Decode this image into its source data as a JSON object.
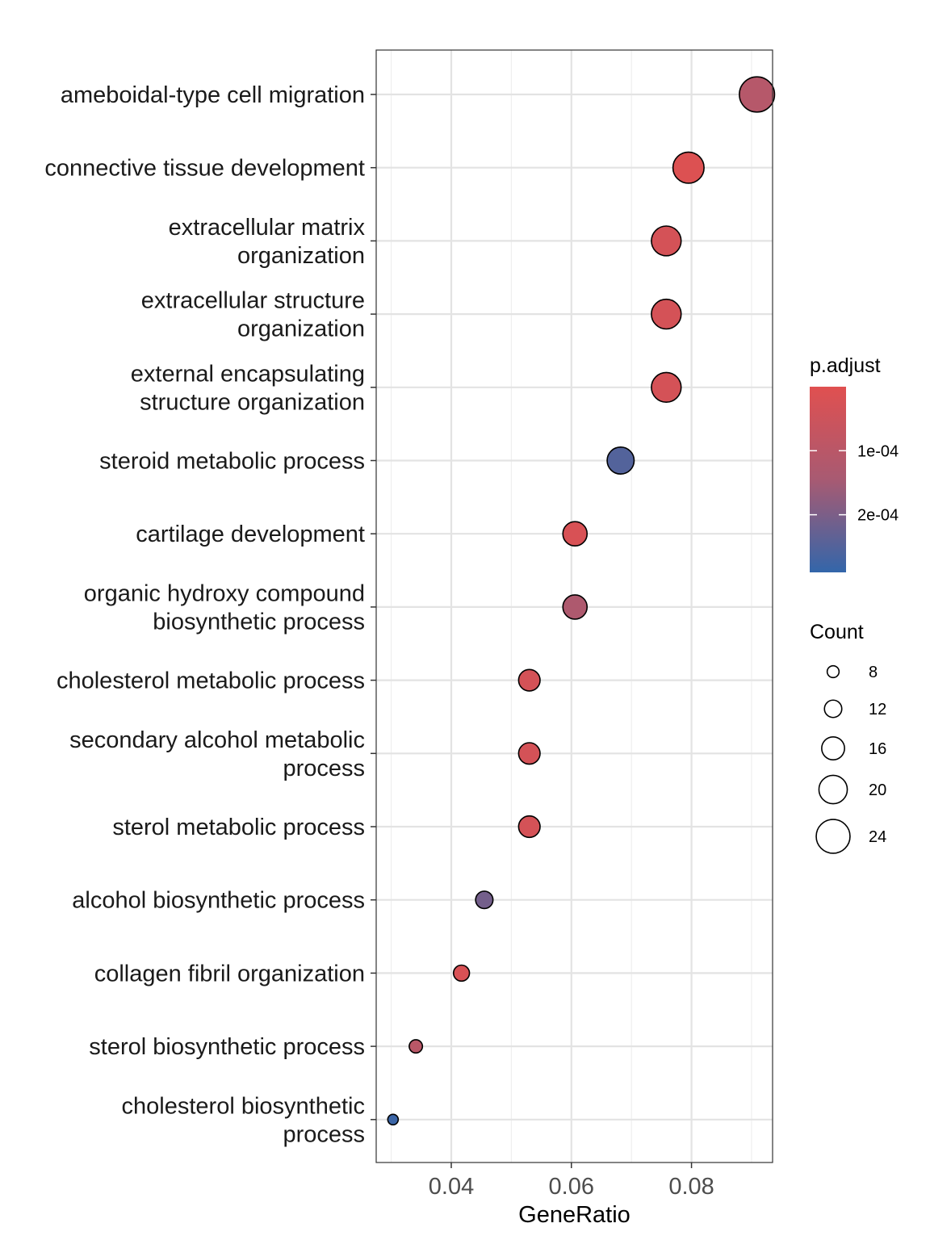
{
  "chart_data": {
    "type": "scatter",
    "title": "",
    "xlabel": "GeneRatio",
    "ylabel": "",
    "xlim": [
      0.0275,
      0.0935
    ],
    "x_ticks": [
      {
        "value": 0.04,
        "label": "0.04"
      },
      {
        "value": 0.06,
        "label": "0.06"
      },
      {
        "value": 0.08,
        "label": "0.08"
      }
    ],
    "grid": true,
    "categories": [
      {
        "lines": [
          "ameboidal-type cell migration"
        ]
      },
      {
        "lines": [
          "connective tissue development"
        ]
      },
      {
        "lines": [
          "extracellular matrix",
          "organization"
        ]
      },
      {
        "lines": [
          "extracellular structure",
          "organization"
        ]
      },
      {
        "lines": [
          "external encapsulating",
          "structure organization"
        ]
      },
      {
        "lines": [
          "steroid metabolic process"
        ]
      },
      {
        "lines": [
          "cartilage development"
        ]
      },
      {
        "lines": [
          "organic hydroxy compound",
          "biosynthetic process"
        ]
      },
      {
        "lines": [
          "cholesterol metabolic process"
        ]
      },
      {
        "lines": [
          "secondary alcohol metabolic",
          "process"
        ]
      },
      {
        "lines": [
          "sterol metabolic process"
        ]
      },
      {
        "lines": [
          "alcohol biosynthetic process"
        ]
      },
      {
        "lines": [
          "collagen fibril organization"
        ]
      },
      {
        "lines": [
          "sterol biosynthetic process"
        ]
      },
      {
        "lines": [
          "cholesterol biosynthetic",
          "process"
        ]
      }
    ],
    "points": [
      {
        "category": "ameboidal-type cell migration",
        "gene_ratio": 0.0909,
        "count": 25,
        "p_adjust": 0.00011
      },
      {
        "category": "connective tissue development",
        "gene_ratio": 0.0795,
        "count": 22,
        "p_adjust": 1e-05
      },
      {
        "category": "extracellular matrix organization",
        "gene_ratio": 0.0758,
        "count": 21,
        "p_adjust": 3e-05
      },
      {
        "category": "extracellular structure organization",
        "gene_ratio": 0.0758,
        "count": 21,
        "p_adjust": 3e-05
      },
      {
        "category": "external encapsulating structure organization",
        "gene_ratio": 0.0758,
        "count": 21,
        "p_adjust": 3e-05
      },
      {
        "category": "steroid metabolic process",
        "gene_ratio": 0.0682,
        "count": 19,
        "p_adjust": 0.00025
      },
      {
        "category": "cartilage development",
        "gene_ratio": 0.0606,
        "count": 17,
        "p_adjust": 2e-05
      },
      {
        "category": "organic hydroxy compound biosynthetic process",
        "gene_ratio": 0.0606,
        "count": 17,
        "p_adjust": 0.00013
      },
      {
        "category": "cholesterol metabolic process",
        "gene_ratio": 0.053,
        "count": 15,
        "p_adjust": 3e-05
      },
      {
        "category": "secondary alcohol metabolic process",
        "gene_ratio": 0.053,
        "count": 15,
        "p_adjust": 3e-05
      },
      {
        "category": "sterol metabolic process",
        "gene_ratio": 0.053,
        "count": 15,
        "p_adjust": 3e-05
      },
      {
        "category": "alcohol biosynthetic process",
        "gene_ratio": 0.0455,
        "count": 12,
        "p_adjust": 0.00021
      },
      {
        "category": "collagen fibril organization",
        "gene_ratio": 0.0417,
        "count": 11,
        "p_adjust": 2e-05
      },
      {
        "category": "sterol biosynthetic process",
        "gene_ratio": 0.0341,
        "count": 9,
        "p_adjust": 0.0001
      },
      {
        "category": "cholesterol biosynthetic process",
        "gene_ratio": 0.0303,
        "count": 7,
        "p_adjust": 0.00028
      }
    ],
    "color_legend": {
      "title": "p.adjust",
      "range": [
        0.0,
        0.00029
      ],
      "high_color": "#e05050",
      "low_color": "#3366aa",
      "ticks": [
        {
          "value": 0.0001,
          "label": "1e-04"
        },
        {
          "value": 0.0002,
          "label": "2e-04"
        }
      ],
      "placement": "right"
    },
    "size_legend": {
      "title": "Count",
      "entries": [
        {
          "value": 8,
          "label": "8"
        },
        {
          "value": 12,
          "label": "12"
        },
        {
          "value": 16,
          "label": "16"
        },
        {
          "value": 20,
          "label": "20"
        },
        {
          "value": 24,
          "label": "24"
        }
      ]
    }
  }
}
